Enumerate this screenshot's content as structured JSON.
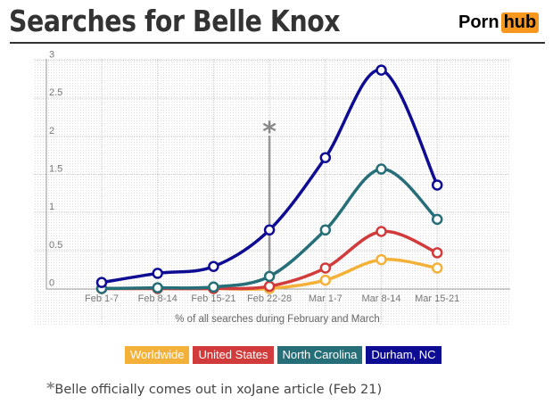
{
  "header": {
    "title": "Searches for Belle Knox",
    "logo": "Porn hub",
    "logo_part1": "Porn",
    "logo_part2": "hub"
  },
  "chart_data": {
    "type": "line",
    "title": "Searches for Belle Knox",
    "xlabel": "% of all searches during February and March",
    "ylabel": "",
    "ylim": [
      0,
      3
    ],
    "yticks": [
      "0",
      "0.5",
      "1",
      "1.5",
      "2",
      "2.5",
      "3"
    ],
    "categories": [
      "Feb 1-7",
      "Feb 8-14",
      "Feb 15-21",
      "Feb 22-28",
      "Mar 1-7",
      "Mar 8-14",
      "Mar 15-21"
    ],
    "grid": true,
    "legend": "bottom",
    "series": [
      {
        "name": "Worldwide",
        "color": "#f4b13a",
        "values": [
          0,
          0,
          0,
          0,
          0.11,
          0.38,
          0.27
        ]
      },
      {
        "name": "United States",
        "color": "#d13b3b",
        "values": [
          0,
          0,
          0,
          0.03,
          0.27,
          0.75,
          0.47
        ]
      },
      {
        "name": "North Carolina",
        "color": "#266e78",
        "values": [
          0,
          0.01,
          0.02,
          0.16,
          0.77,
          1.57,
          0.91
        ]
      },
      {
        "name": "Durham, NC",
        "color": "#0f0c94",
        "values": [
          0.08,
          0.2,
          0.29,
          0.77,
          1.72,
          2.87,
          1.36
        ]
      }
    ],
    "annotation": {
      "category": "Feb 22-28",
      "marker": "*",
      "text": "Belle officially comes out in xoJane article (Feb 21)"
    }
  }
}
